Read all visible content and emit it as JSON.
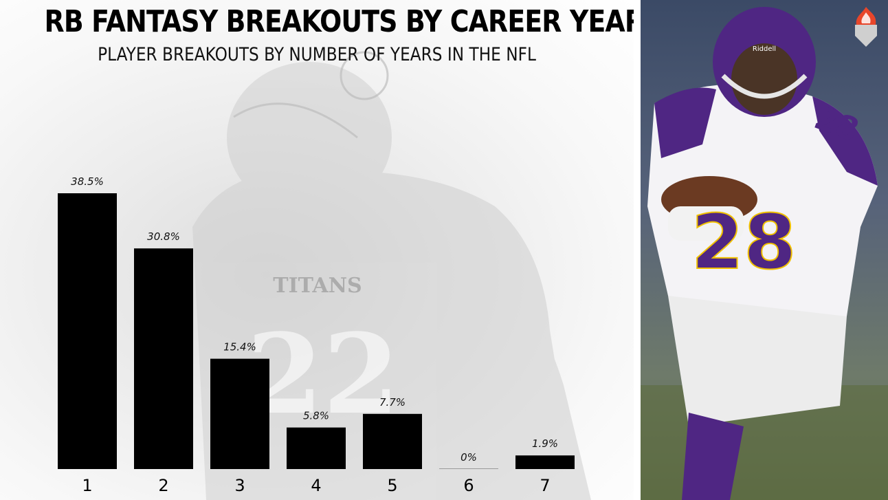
{
  "header": {
    "title": "RB FANTASY BREAKOUTS BY CAREER YEAR",
    "subtitle": "PLAYER BREAKOUTS BY NUMBER OF YEARS IN THE NFL"
  },
  "colors": {
    "bar": "#000000",
    "background": "#ffffff",
    "logo_flame": "#e8462a",
    "logo_shield": "#cfcfcf"
  },
  "chart_data": {
    "type": "bar",
    "categories": [
      "1",
      "2",
      "3",
      "4",
      "5",
      "6",
      "7"
    ],
    "values": [
      38.5,
      30.8,
      15.4,
      5.8,
      7.7,
      0,
      1.9
    ],
    "data_labels": [
      "38.5%",
      "30.8%",
      "15.4%",
      "5.8%",
      "7.7%",
      "0%",
      "1.9%"
    ],
    "title": "RB FANTASY BREAKOUTS BY CAREER YEAR",
    "subtitle": "PLAYER BREAKOUTS BY NUMBER OF YEARS IN THE NFL",
    "xlabel": "",
    "ylabel": "",
    "ylim": [
      0,
      38.5
    ],
    "grid": false,
    "legend": "none"
  },
  "background_photo": {
    "jersey_text": "TITANS",
    "jersey_number": "22"
  },
  "side_photo": {
    "jersey_number": "28",
    "helmet_brand": "Riddell"
  }
}
